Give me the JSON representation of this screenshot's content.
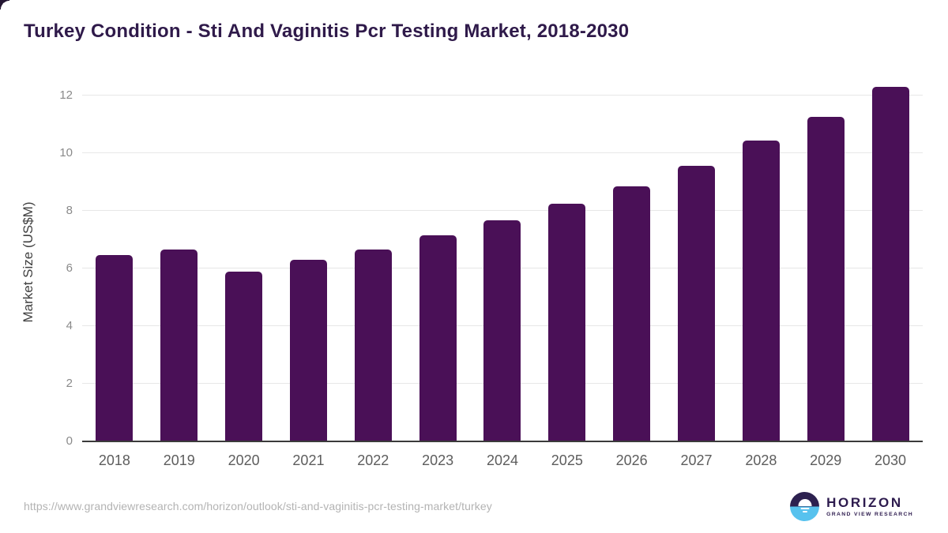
{
  "chart_data": {
    "type": "bar",
    "title": "Turkey Condition - Sti And Vaginitis Pcr Testing Market, 2018-2030",
    "categories": [
      "2018",
      "2019",
      "2020",
      "2021",
      "2022",
      "2023",
      "2024",
      "2025",
      "2026",
      "2027",
      "2028",
      "2029",
      "2030"
    ],
    "values": [
      6.48,
      6.67,
      5.88,
      6.29,
      6.67,
      7.16,
      7.67,
      8.26,
      8.84,
      9.55,
      10.45,
      11.25,
      12.29
    ],
    "xlabel": "",
    "ylabel": "Market Size (US$M)",
    "yticks": [
      0,
      2,
      4,
      6,
      8,
      10,
      12
    ],
    "ylim": [
      0,
      12.33
    ],
    "grid": "horizontal",
    "legend_position": "none"
  },
  "colors": {
    "bar": "#4a1057",
    "title": "#2f1a4a",
    "grid": "#e7e7e7",
    "axis_line": "#3b3b3b",
    "y_tick": "#8a8a8a",
    "x_tick": "#5d5d5d",
    "axis_title": "#3f3f3f",
    "url_text": "#b3b3b3",
    "logo_purple": "#2d2150",
    "logo_blue": "#57c2ee"
  },
  "footer": {
    "source_url": "https://www.grandviewresearch.com/horizon/outlook/sti-and-vaginitis-pcr-testing-market/turkey",
    "logo": {
      "title": "HORIZON",
      "subtitle": "GRAND VIEW RESEARCH"
    }
  }
}
